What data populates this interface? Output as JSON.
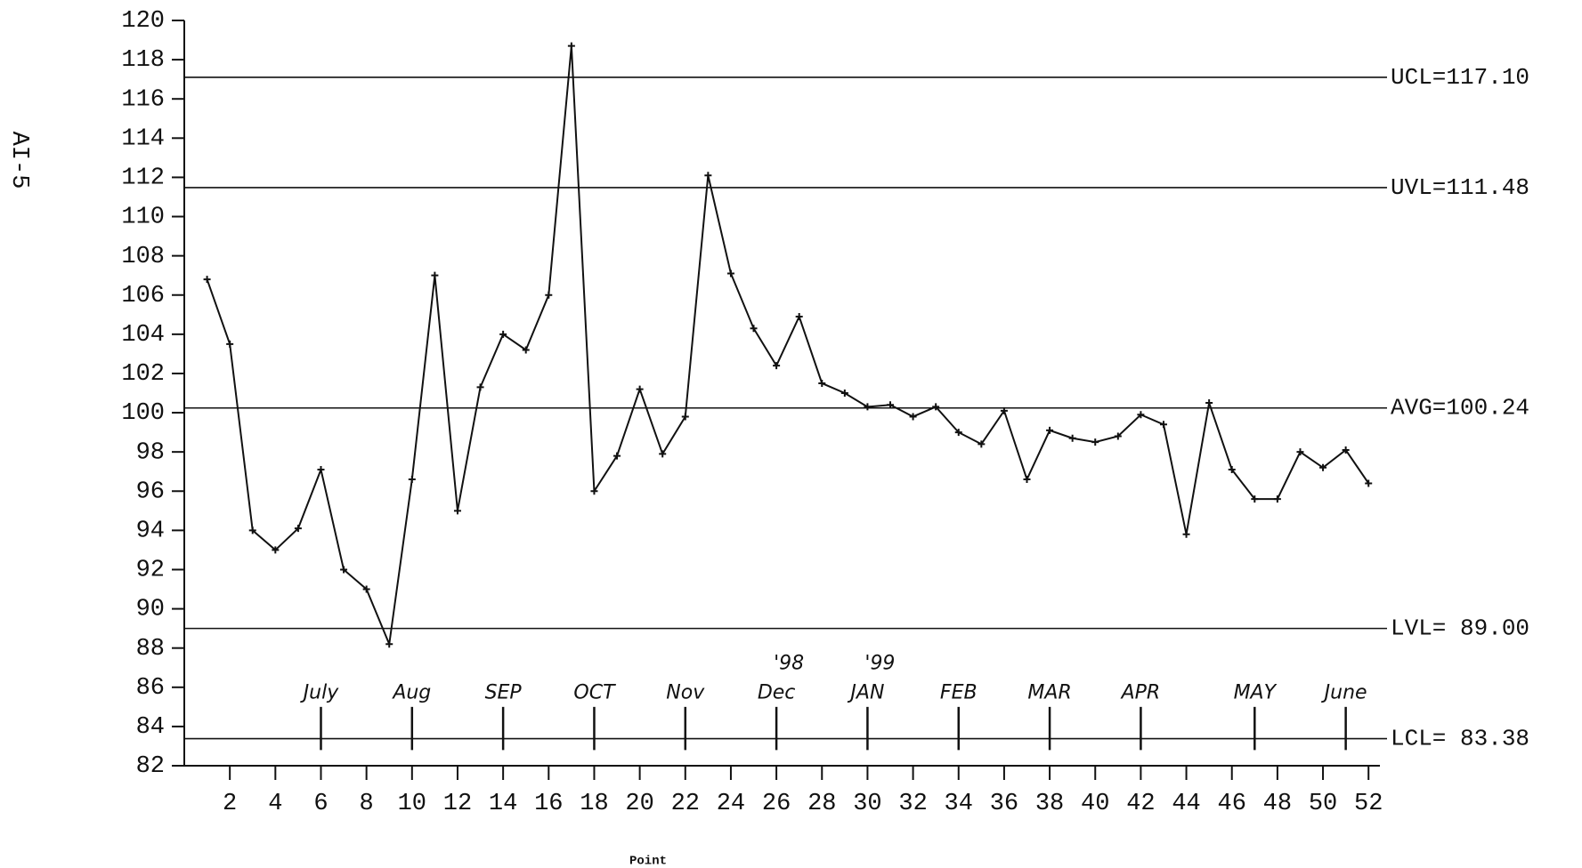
{
  "chart_data": {
    "type": "line",
    "page_label": "AI-5",
    "x_label": "Point",
    "x": [
      1,
      2,
      3,
      4,
      5,
      6,
      7,
      8,
      9,
      10,
      11,
      12,
      13,
      14,
      15,
      16,
      17,
      18,
      19,
      20,
      21,
      22,
      23,
      24,
      25,
      26,
      27,
      28,
      29,
      30,
      31,
      32,
      33,
      34,
      35,
      36,
      37,
      38,
      39,
      40,
      41,
      42,
      43,
      44,
      45,
      46,
      47,
      48,
      49,
      50,
      51,
      52
    ],
    "series": [
      {
        "color": "#111111",
        "values": [
          106.8,
          103.5,
          94,
          93,
          94.1,
          97.1,
          92,
          91,
          88.2,
          96.6,
          107,
          95,
          101.3,
          104,
          103.2,
          106,
          118.7,
          96,
          97.8,
          101.2,
          97.9,
          99.8,
          112.1,
          107.1,
          104.3,
          102.4,
          104.9,
          101.5,
          101,
          100.3,
          100.4,
          99.8,
          100.3,
          99,
          98.4,
          100.1,
          96.6,
          99.1,
          98.7,
          98.5,
          98.8,
          99.9,
          99.4,
          93.8,
          100.5,
          97.1,
          95.6,
          95.6,
          98,
          97.2,
          98.1,
          96.4
        ]
      }
    ],
    "control_limits": [
      {
        "label": "UCL=117.10",
        "value": 117.1
      },
      {
        "label": "UVL=111.48",
        "value": 111.48
      },
      {
        "label": "AVG=100.24",
        "value": 100.24
      },
      {
        "label": "LVL= 89.00",
        "value": 89
      },
      {
        "label": "LCL= 83.38",
        "value": 83.38
      }
    ],
    "month_markers": [
      {
        "label": "July",
        "x": 6
      },
      {
        "label": "Aug",
        "x": 10
      },
      {
        "label": "SEP",
        "x": 14
      },
      {
        "label": "OCT",
        "x": 18
      },
      {
        "label": "Nov",
        "x": 22
      },
      {
        "label": "Dec",
        "x": 26
      },
      {
        "label": "JAN",
        "x": 30
      },
      {
        "label": "FEB",
        "x": 34
      },
      {
        "label": "MAR",
        "x": 38
      },
      {
        "label": "APR",
        "x": 42
      },
      {
        "label": "MAY",
        "x": 47
      },
      {
        "label": "June",
        "x": 51
      }
    ],
    "year_labels": [
      {
        "label": "'98",
        "x": 26
      },
      {
        "label": "'99",
        "x": 30
      }
    ],
    "xlim": [
      0,
      52.5
    ],
    "ylim": [
      82,
      120
    ],
    "xticks": [
      2,
      4,
      6,
      8,
      10,
      12,
      14,
      16,
      18,
      20,
      22,
      24,
      26,
      28,
      30,
      32,
      34,
      36,
      38,
      40,
      42,
      44,
      46,
      48,
      50,
      52
    ],
    "yticks": [
      82,
      84,
      86,
      88,
      90,
      92,
      94,
      96,
      98,
      100,
      102,
      104,
      106,
      108,
      110,
      112,
      114,
      116,
      118,
      120
    ]
  }
}
